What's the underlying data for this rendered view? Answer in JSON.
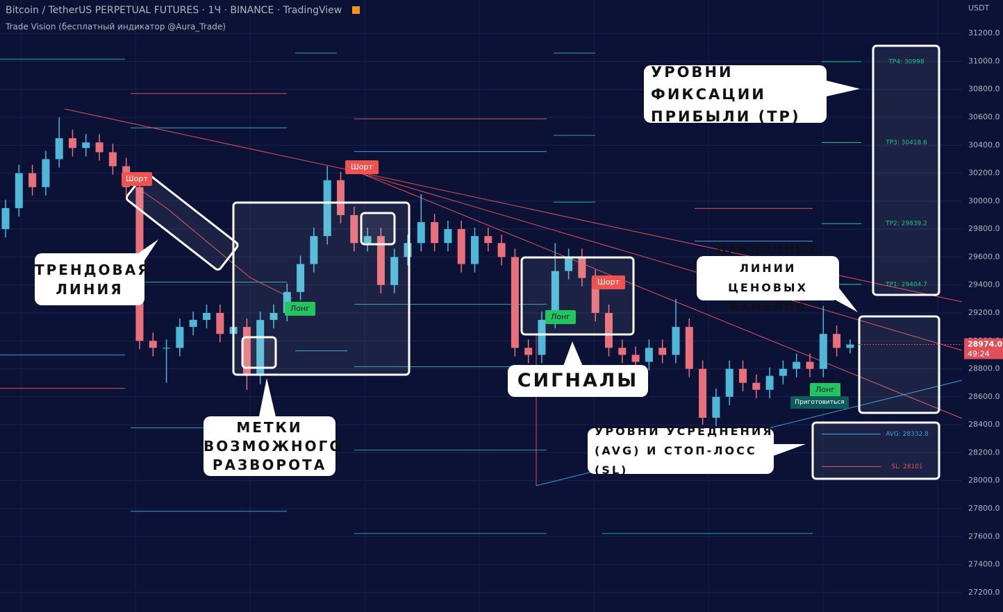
{
  "chart_data": {
    "type": "candlestick",
    "title": "Bitcoin / TetherUS PERPETUAL FUTURES · 1Ч · BINANCE · TradingView",
    "subtitle": "Trade Vision (бесплатный индикатор @Aura_Trade)",
    "y_unit": "USDT",
    "up_color": "#4fb8d8",
    "down_color": "#e8707a",
    "open": [
      29800,
      29950,
      30200,
      30100,
      30300,
      30450,
      30380,
      30420,
      30350,
      30250,
      30100,
      29000,
      28950,
      28950,
      29100,
      29150,
      29200,
      29050,
      29100,
      28750,
      29150,
      29200,
      29350,
      29550,
      29750,
      30150,
      29900,
      29700,
      29750,
      29400,
      29600,
      29700,
      29850,
      29700,
      29800,
      29550,
      29750,
      29700,
      29600,
      28950,
      28900,
      29150,
      29500,
      29600,
      29450,
      29200,
      28950,
      28900,
      28850,
      28950,
      28900,
      29100,
      28800,
      28450,
      28600,
      28800,
      28700,
      28650,
      28750,
      28800,
      28850,
      28800,
      29050,
      28950
    ],
    "high": [
      30010,
      30260,
      30260,
      30360,
      30600,
      30510,
      30480,
      30480,
      30410,
      30310,
      30160,
      29060,
      29010,
      29160,
      29210,
      29260,
      29260,
      29160,
      29160,
      29210,
      29260,
      29410,
      29610,
      29810,
      30250,
      30210,
      29960,
      29810,
      29810,
      29660,
      29760,
      30050,
      29910,
      29860,
      29860,
      29810,
      29810,
      29760,
      29660,
      29010,
      29210,
      29700,
      29660,
      29660,
      29510,
      29260,
      29010,
      28960,
      29010,
      29010,
      29300,
      29160,
      28860,
      28660,
      28860,
      28860,
      28760,
      28810,
      28860,
      28910,
      28910,
      29250,
      29110,
      29010
    ],
    "low": [
      29740,
      29890,
      30040,
      30040,
      30240,
      30320,
      30320,
      30290,
      30190,
      30040,
      28940,
      28890,
      28700,
      28890,
      29040,
      29090,
      28990,
      28990,
      28650,
      28690,
      29090,
      29140,
      29290,
      29490,
      29690,
      29840,
      29640,
      29640,
      29340,
      29340,
      29540,
      29640,
      29640,
      29640,
      29490,
      29490,
      29640,
      29540,
      28890,
      28840,
      28840,
      29090,
      29440,
      29390,
      29140,
      28890,
      28840,
      28790,
      28790,
      28840,
      28840,
      28740,
      28400,
      28390,
      28540,
      28640,
      28590,
      28590,
      28690,
      28740,
      28740,
      28740,
      28890,
      28910
    ],
    "close": [
      29950,
      30200,
      30100,
      30300,
      30450,
      30380,
      30420,
      30350,
      30250,
      30100,
      29000,
      28950,
      28950,
      29100,
      29150,
      29200,
      29050,
      29100,
      28750,
      29150,
      29200,
      29350,
      29550,
      29750,
      30150,
      29900,
      29700,
      29750,
      29400,
      29600,
      29700,
      29850,
      29700,
      29800,
      29550,
      29750,
      29700,
      29600,
      28950,
      28900,
      29150,
      29500,
      29600,
      29450,
      29200,
      28950,
      28900,
      28850,
      28950,
      28900,
      29100,
      28800,
      28450,
      28600,
      28800,
      28700,
      28650,
      28750,
      28800,
      28850,
      28800,
      29050,
      28950,
      28974
    ],
    "ylim": [
      27100,
      31300
    ],
    "yticks": [
      {
        "value": 27200,
        "label": "27200.0"
      },
      {
        "value": 27400,
        "label": "27400.0"
      },
      {
        "value": 27600,
        "label": "27600.0"
      },
      {
        "value": 27800,
        "label": "27800.0"
      },
      {
        "value": 28000,
        "label": "28000.0"
      },
      {
        "value": 28200,
        "label": "28200.0"
      },
      {
        "value": 28400,
        "label": "28400.0"
      },
      {
        "value": 28600,
        "label": "28600.0"
      },
      {
        "value": 28800,
        "label": "28800.0"
      },
      {
        "value": 29000,
        "label": "29000.0"
      },
      {
        "value": 29200,
        "label": "29200.0"
      },
      {
        "value": 29400,
        "label": "29400.0"
      },
      {
        "value": 29600,
        "label": "29600.0"
      },
      {
        "value": 29800,
        "label": "29800.0"
      },
      {
        "value": 30000,
        "label": "30000.0"
      },
      {
        "value": 30200,
        "label": "30200.0"
      },
      {
        "value": 30400,
        "label": "30400.0"
      },
      {
        "value": 30600,
        "label": "30600.0"
      },
      {
        "value": 30800,
        "label": "30800.0"
      },
      {
        "value": 31000,
        "label": "31000.0"
      },
      {
        "value": 31200,
        "label": "31200.0"
      }
    ],
    "grid": true,
    "levels": [
      {
        "value": 31016,
        "color": "#26a69a"
      },
      {
        "value": 31060,
        "color": "#26a69a"
      },
      {
        "value": 31060,
        "color": "#26a69a"
      },
      {
        "value": 30770,
        "color": "#e0505a"
      },
      {
        "value": 30524,
        "color": "#3aa0d8"
      },
      {
        "value": 30589,
        "color": "#e0505a"
      },
      {
        "value": 30355,
        "color": "#3aa0d8"
      },
      {
        "value": 30470,
        "color": "#26a69a"
      },
      {
        "value": 29993,
        "color": "#26a69a"
      },
      {
        "value": 29948,
        "color": "#e0505a"
      },
      {
        "value": 29714,
        "color": "#3aa0d8"
      },
      {
        "value": 29421,
        "color": "#26a69a"
      },
      {
        "value": 29262,
        "color": "#26a69a"
      },
      {
        "value": 28815,
        "color": "#26a69a"
      },
      {
        "value": 28899,
        "color": "#3aa0d8"
      },
      {
        "value": 28661,
        "color": "#e0505a"
      },
      {
        "value": 28929,
        "color": "#3aa0d8"
      },
      {
        "value": 28378,
        "color": "#26a69a"
      },
      {
        "value": 28219,
        "color": "#26a69a"
      },
      {
        "value": 27781,
        "color": "#3aa0d8"
      },
      {
        "value": 27622,
        "color": "#26a69a"
      },
      {
        "value": 27622,
        "color": "#26a69a"
      }
    ],
    "tp_levels": [
      {
        "label": "TP4: 30998",
        "value": 30998,
        "color": "#26c281"
      },
      {
        "label": "TP3: 30418.6",
        "value": 30418.6,
        "color": "#26c281"
      },
      {
        "label": "TP2: 29839.2",
        "value": 29839.2,
        "color": "#26c281"
      },
      {
        "label": "TP1: 29404.7",
        "value": 29404.7,
        "color": "#26c281"
      },
      {
        "label": "AVG: 28332.8",
        "value": 28332.8,
        "color": "#3aa0d8"
      },
      {
        "label": "SL: 28101",
        "value": 28101,
        "color": "#e0505a"
      }
    ],
    "last_price": {
      "value": 28974,
      "label": "28974.0"
    },
    "timer": "49:24",
    "signals": [
      "Шорт",
      "Шорт",
      "Шорт",
      "Лонг",
      "Лонг",
      "Лонг",
      "Приготовиться"
    ],
    "annotations": {
      "trend_line": [
        "ТРЕНДОВАЯ",
        "ЛИНИЯ"
      ],
      "reversal_marks": [
        "МЕТКИ",
        "ВОЗМОЖНОГО",
        "РАЗВОРОТА"
      ],
      "signals": [
        "СИГНАЛЫ"
      ],
      "tp_levels": [
        "УРОВНИ ФИКСАЦИИ",
        "ПРИБЫЛИ (TP)"
      ],
      "channels": [
        "НАКЛОННЫЕ ЛИНИИ",
        "ЦЕНОВЫХ КАНАЛОВ"
      ],
      "avg_sl": [
        "УРОВНИ УСРЕДНЕНИЯ",
        "(AVG) И СТОП-ЛОСС (SL)"
      ]
    }
  }
}
